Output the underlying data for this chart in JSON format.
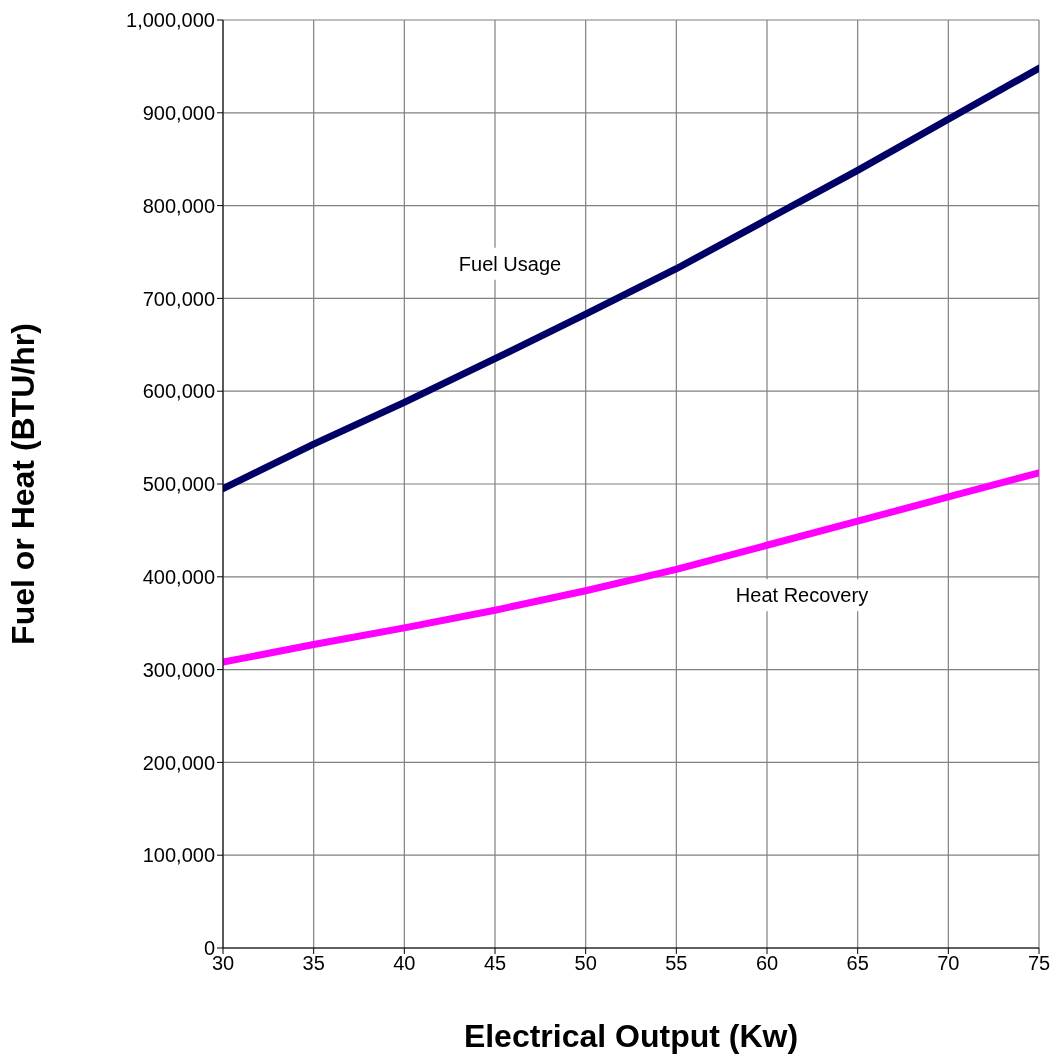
{
  "chart_data": {
    "type": "line",
    "xlabel": "Electrical Output (Kw)",
    "ylabel": "Fuel or Heat (BTU/hr)",
    "x": [
      30,
      35,
      40,
      45,
      50,
      55,
      60,
      65,
      70,
      75
    ],
    "series": [
      {
        "name": "Fuel Usage",
        "color": "#000066",
        "values": [
          495000,
          543000,
          588000,
          635000,
          683000,
          732000,
          785000,
          838000,
          893000,
          948000
        ]
      },
      {
        "name": "Heat Recovery",
        "color": "#ff00ff",
        "values": [
          308000,
          327000,
          345000,
          364000,
          385000,
          408000,
          434000,
          460000,
          486000,
          512000
        ]
      }
    ],
    "xlim": [
      30,
      75
    ],
    "xticks": [
      30,
      35,
      40,
      45,
      50,
      55,
      60,
      65,
      70,
      75
    ],
    "ylim": [
      0,
      1000000
    ],
    "yticks": [
      0,
      {
        "value": 100000,
        "label": "100,000"
      },
      {
        "value": 200000,
        "label": "200,000"
      },
      {
        "value": 300000,
        "label": "300,000"
      },
      {
        "value": 400000,
        "label": "400,000"
      },
      {
        "value": 500000,
        "label": "500,000"
      },
      {
        "value": 600000,
        "label": "600,000"
      },
      {
        "value": 700000,
        "label": "700,000"
      },
      {
        "value": 800000,
        "label": "800,000"
      },
      {
        "value": 900000,
        "label": "900,000"
      },
      {
        "value": 1000000,
        "label": "1,000,000"
      }
    ],
    "grid": true,
    "marker": "none",
    "line_style": "solid"
  }
}
